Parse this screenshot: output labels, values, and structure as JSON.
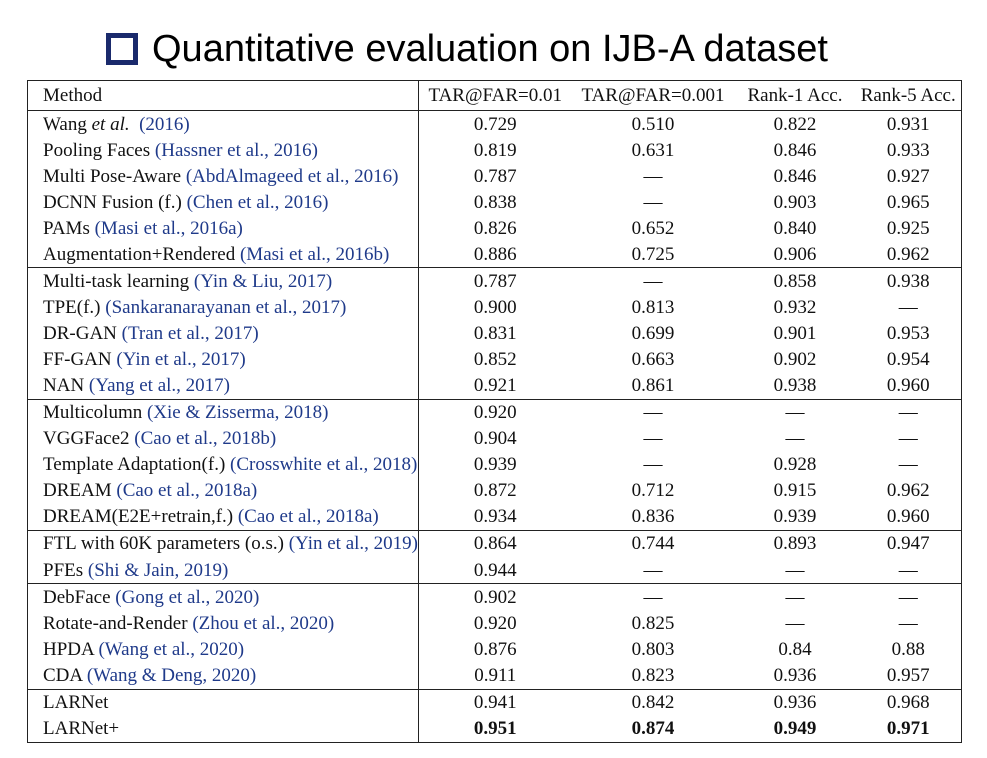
{
  "title": "Quantitative evaluation on IJB-A dataset",
  "columns": [
    "Method",
    "TAR@FAR=0.01",
    "TAR@FAR=0.001",
    "Rank-1 Acc.",
    "Rank-5 Acc."
  ],
  "colors": {
    "citation": "#1f3a8a",
    "bullet": "#1a2a6c"
  },
  "groups": [
    {
      "rows": [
        {
          "name": "Wang ",
          "name_italic": "et al.",
          "cite": "(2016)",
          "v": [
            "0.729",
            "0.510",
            "0.822",
            "0.931"
          ]
        },
        {
          "name": "Pooling Faces ",
          "cite": "(Hassner et al., 2016)",
          "v": [
            "0.819",
            "0.631",
            "0.846",
            "0.933"
          ]
        },
        {
          "name": "Multi Pose-Aware ",
          "cite": "(AbdAlmageed et al., 2016)",
          "v": [
            "0.787",
            "—",
            "0.846",
            "0.927"
          ]
        },
        {
          "name": "DCNN Fusion (f.) ",
          "cite": "(Chen et al., 2016)",
          "v": [
            "0.838",
            "—",
            "0.903",
            "0.965"
          ]
        },
        {
          "name": "PAMs ",
          "cite": "(Masi et al., 2016a)",
          "v": [
            "0.826",
            "0.652",
            "0.840",
            "0.925"
          ]
        },
        {
          "name": "Augmentation+Rendered ",
          "cite": "(Masi et al., 2016b)",
          "v": [
            "0.886",
            "0.725",
            "0.906",
            "0.962"
          ]
        }
      ]
    },
    {
      "rows": [
        {
          "name": "Multi-task learning ",
          "cite": "(Yin & Liu, 2017)",
          "v": [
            "0.787",
            "—",
            "0.858",
            "0.938"
          ]
        },
        {
          "name": "TPE(f.) ",
          "cite": "(Sankaranarayanan et al., 2017)",
          "v": [
            "0.900",
            "0.813",
            "0.932",
            "—"
          ]
        },
        {
          "name": "DR-GAN ",
          "cite": "(Tran et al., 2017)",
          "v": [
            "0.831",
            "0.699",
            "0.901",
            "0.953"
          ]
        },
        {
          "name": "FF-GAN ",
          "cite": "(Yin et al., 2017)",
          "v": [
            "0.852",
            "0.663",
            "0.902",
            "0.954"
          ]
        },
        {
          "name": "NAN ",
          "cite": "(Yang et al., 2017)",
          "v": [
            "0.921",
            "0.861",
            "0.938",
            "0.960"
          ]
        }
      ]
    },
    {
      "rows": [
        {
          "name": "Multicolumn ",
          "cite": "(Xie & Zisserma, 2018)",
          "v": [
            "0.920",
            "—",
            "—",
            "—"
          ]
        },
        {
          "name": "VGGFace2 ",
          "cite": "(Cao et al., 2018b)",
          "v": [
            "0.904",
            "—",
            "—",
            "—"
          ]
        },
        {
          "name": "Template Adaptation(f.)  ",
          "cite": "(Crosswhite et al., 2018)",
          "v": [
            "0.939",
            "—",
            "0.928",
            "—"
          ]
        },
        {
          "name": "DREAM ",
          "cite": "(Cao et al., 2018a)",
          "v": [
            "0.872",
            "0.712",
            "0.915",
            "0.962"
          ]
        },
        {
          "name": "DREAM(E2E+retrain,f.) ",
          "cite": "(Cao et al., 2018a)",
          "v": [
            "0.934",
            "0.836",
            "0.939",
            "0.960"
          ]
        }
      ]
    },
    {
      "rows": [
        {
          "name": "FTL with 60K parameters (o.s.) ",
          "cite": "(Yin et al., 2019)",
          "v": [
            "0.864",
            "0.744",
            "0.893",
            "0.947"
          ]
        },
        {
          "name": "PFEs ",
          "cite": "(Shi & Jain, 2019)",
          "v": [
            "0.944",
            "—",
            "—",
            "—"
          ]
        }
      ]
    },
    {
      "rows": [
        {
          "name": "DebFace ",
          "cite": "(Gong et al., 2020)",
          "v": [
            "0.902",
            "—",
            "—",
            "—"
          ]
        },
        {
          "name": "Rotate-and-Render ",
          "cite": "(Zhou et al., 2020)",
          "v": [
            "0.920",
            "0.825",
            "—",
            "—"
          ]
        },
        {
          "name": "HPDA ",
          "cite": "(Wang et al., 2020)",
          "v": [
            "0.876",
            "0.803",
            "0.84",
            "0.88"
          ]
        },
        {
          "name": "CDA ",
          "cite": "(Wang & Deng, 2020)",
          "v": [
            "0.911",
            "0.823",
            "0.936",
            "0.957"
          ]
        }
      ]
    },
    {
      "rows": [
        {
          "name": "LARNet",
          "cite": "",
          "v": [
            "0.941",
            "0.842",
            "0.936",
            "0.968"
          ]
        },
        {
          "name": "LARNet+",
          "cite": "",
          "bold": true,
          "v": [
            "0.951",
            "0.874",
            "0.949",
            "0.971"
          ]
        }
      ]
    }
  ]
}
